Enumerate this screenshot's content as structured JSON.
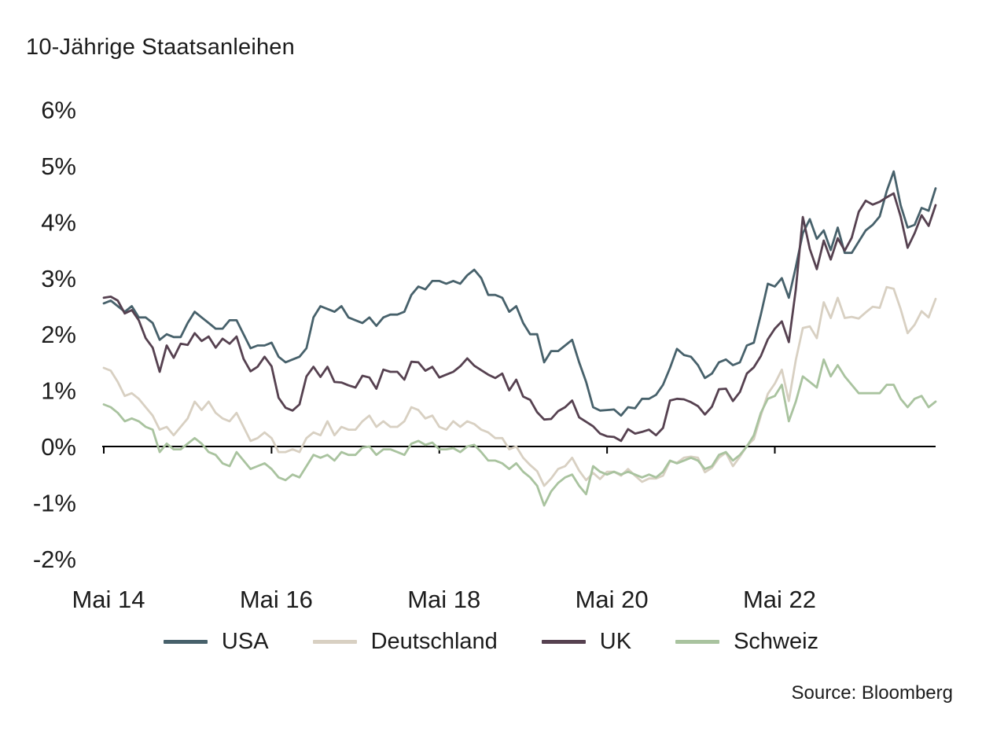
{
  "title": "10-Jährige Staatsanleihen",
  "source": "Source: Bloomberg",
  "chart_data": {
    "type": "line",
    "title": "10-Jährige Staatsanleihen",
    "xlabel": "",
    "ylabel": "",
    "ylim": [
      -2,
      6
    ],
    "grid": false,
    "legend_position": "bottom",
    "x_start": "Mai 14",
    "x_interval": "month",
    "y_ticks": [
      {
        "label": "6%",
        "value": 6
      },
      {
        "label": "5%",
        "value": 5
      },
      {
        "label": "4%",
        "value": 4
      },
      {
        "label": "3%",
        "value": 3
      },
      {
        "label": "2%",
        "value": 2
      },
      {
        "label": "1%",
        "value": 1
      },
      {
        "label": "0%",
        "value": 0
      },
      {
        "label": "-1%",
        "value": -1
      },
      {
        "label": "-2%",
        "value": -2
      }
    ],
    "x_ticks": [
      {
        "label": "Mai 14",
        "month_index": 0
      },
      {
        "label": "Mai 16",
        "month_index": 24
      },
      {
        "label": "Mai 18",
        "month_index": 48
      },
      {
        "label": "Mai 20",
        "month_index": 72
      },
      {
        "label": "Mai 22",
        "month_index": 96
      }
    ],
    "series": [
      {
        "name": "USA",
        "color": "#47616b",
        "values": [
          2.55,
          2.6,
          2.5,
          2.4,
          2.5,
          2.3,
          2.3,
          2.2,
          1.9,
          2.0,
          1.95,
          1.95,
          2.2,
          2.4,
          2.3,
          2.2,
          2.1,
          2.1,
          2.25,
          2.25,
          2.0,
          1.75,
          1.8,
          1.8,
          1.85,
          1.6,
          1.5,
          1.55,
          1.6,
          1.75,
          2.3,
          2.5,
          2.45,
          2.4,
          2.5,
          2.3,
          2.25,
          2.2,
          2.3,
          2.15,
          2.3,
          2.35,
          2.35,
          2.4,
          2.7,
          2.85,
          2.8,
          2.95,
          2.95,
          2.9,
          2.95,
          2.9,
          3.05,
          3.15,
          3.0,
          2.7,
          2.7,
          2.65,
          2.4,
          2.5,
          2.2,
          2.0,
          2.0,
          1.5,
          1.7,
          1.7,
          1.8,
          1.9,
          1.5,
          1.15,
          0.7,
          0.64,
          0.65,
          0.66,
          0.55,
          0.7,
          0.68,
          0.85,
          0.85,
          0.92,
          1.1,
          1.4,
          1.74,
          1.63,
          1.6,
          1.45,
          1.22,
          1.3,
          1.5,
          1.55,
          1.45,
          1.5,
          1.8,
          1.85,
          2.35,
          2.9,
          2.85,
          3.0,
          2.65,
          3.2,
          3.8,
          4.05,
          3.7,
          3.85,
          3.5,
          3.9,
          3.45,
          3.45,
          3.65,
          3.85,
          3.95,
          4.1,
          4.55,
          4.9,
          4.3,
          3.9,
          3.95,
          4.25,
          4.2,
          4.6
        ]
      },
      {
        "name": "Deutschland",
        "color": "#d8d0c2",
        "values": [
          1.4,
          1.35,
          1.15,
          0.9,
          0.95,
          0.85,
          0.7,
          0.55,
          0.3,
          0.35,
          0.2,
          0.35,
          0.5,
          0.8,
          0.65,
          0.8,
          0.6,
          0.5,
          0.45,
          0.6,
          0.35,
          0.1,
          0.15,
          0.25,
          0.15,
          -0.1,
          -0.1,
          -0.05,
          -0.1,
          0.15,
          0.25,
          0.2,
          0.45,
          0.2,
          0.35,
          0.3,
          0.3,
          0.45,
          0.55,
          0.35,
          0.45,
          0.35,
          0.35,
          0.45,
          0.7,
          0.65,
          0.5,
          0.55,
          0.35,
          0.3,
          0.45,
          0.35,
          0.45,
          0.4,
          0.3,
          0.25,
          0.15,
          0.15,
          -0.05,
          0.0,
          -0.2,
          -0.33,
          -0.44,
          -0.7,
          -0.57,
          -0.4,
          -0.35,
          -0.2,
          -0.43,
          -0.6,
          -0.47,
          -0.58,
          -0.45,
          -0.45,
          -0.52,
          -0.4,
          -0.52,
          -0.63,
          -0.57,
          -0.57,
          -0.52,
          -0.26,
          -0.29,
          -0.2,
          -0.18,
          -0.2,
          -0.46,
          -0.38,
          -0.2,
          -0.11,
          -0.35,
          -0.18,
          0.01,
          0.13,
          0.55,
          0.94,
          1.12,
          1.37,
          0.81,
          1.54,
          2.11,
          2.14,
          1.93,
          2.57,
          2.29,
          2.65,
          2.29,
          2.31,
          2.28,
          2.39,
          2.49,
          2.47,
          2.84,
          2.81,
          2.45,
          2.02,
          2.17,
          2.41,
          2.3,
          2.63
        ]
      },
      {
        "name": "UK",
        "color": "#564150",
        "values": [
          2.65,
          2.67,
          2.6,
          2.37,
          2.43,
          2.25,
          1.93,
          1.76,
          1.33,
          1.8,
          1.58,
          1.83,
          1.81,
          2.02,
          1.88,
          1.96,
          1.76,
          1.92,
          1.83,
          1.96,
          1.56,
          1.34,
          1.42,
          1.6,
          1.43,
          0.87,
          0.69,
          0.64,
          0.75,
          1.25,
          1.42,
          1.24,
          1.42,
          1.15,
          1.14,
          1.09,
          1.05,
          1.26,
          1.23,
          1.03,
          1.37,
          1.33,
          1.33,
          1.19,
          1.51,
          1.5,
          1.35,
          1.42,
          1.23,
          1.28,
          1.33,
          1.43,
          1.57,
          1.44,
          1.36,
          1.28,
          1.22,
          1.3,
          1.0,
          1.19,
          0.89,
          0.83,
          0.61,
          0.48,
          0.49,
          0.63,
          0.7,
          0.82,
          0.52,
          0.44,
          0.36,
          0.23,
          0.18,
          0.17,
          0.1,
          0.31,
          0.23,
          0.26,
          0.3,
          0.2,
          0.33,
          0.82,
          0.85,
          0.84,
          0.79,
          0.72,
          0.57,
          0.71,
          1.02,
          1.03,
          0.81,
          0.97,
          1.3,
          1.41,
          1.61,
          1.91,
          2.1,
          2.23,
          1.86,
          2.8,
          4.09,
          3.52,
          3.16,
          3.67,
          3.33,
          3.71,
          3.49,
          3.72,
          4.18,
          4.38,
          4.31,
          4.36,
          4.44,
          4.51,
          4.1,
          3.54,
          3.8,
          4.12,
          3.93,
          4.3
        ]
      },
      {
        "name": "Schweiz",
        "color": "#a9c39f",
        "values": [
          0.75,
          0.7,
          0.6,
          0.45,
          0.5,
          0.45,
          0.35,
          0.3,
          -0.1,
          0.05,
          -0.05,
          -0.05,
          0.05,
          0.15,
          0.05,
          -0.1,
          -0.15,
          -0.3,
          -0.35,
          -0.1,
          -0.25,
          -0.4,
          -0.35,
          -0.3,
          -0.4,
          -0.55,
          -0.6,
          -0.5,
          -0.55,
          -0.35,
          -0.15,
          -0.2,
          -0.15,
          -0.25,
          -0.1,
          -0.15,
          -0.15,
          -0.02,
          0.0,
          -0.15,
          -0.05,
          -0.05,
          -0.1,
          -0.15,
          0.05,
          0.1,
          0.03,
          0.07,
          -0.05,
          -0.05,
          -0.03,
          -0.1,
          0.0,
          0.03,
          -0.1,
          -0.25,
          -0.25,
          -0.3,
          -0.4,
          -0.3,
          -0.45,
          -0.55,
          -0.7,
          -1.05,
          -0.8,
          -0.65,
          -0.55,
          -0.5,
          -0.7,
          -0.85,
          -0.35,
          -0.45,
          -0.5,
          -0.45,
          -0.5,
          -0.45,
          -0.5,
          -0.55,
          -0.5,
          -0.55,
          -0.45,
          -0.25,
          -0.3,
          -0.25,
          -0.2,
          -0.25,
          -0.4,
          -0.35,
          -0.15,
          -0.1,
          -0.25,
          -0.15,
          0.0,
          0.2,
          0.6,
          0.85,
          0.9,
          1.1,
          0.45,
          0.8,
          1.25,
          1.15,
          1.05,
          1.55,
          1.25,
          1.45,
          1.25,
          1.1,
          0.95,
          0.95,
          0.95,
          0.95,
          1.1,
          1.1,
          0.85,
          0.7,
          0.85,
          0.9,
          0.7,
          0.8
        ]
      }
    ]
  }
}
